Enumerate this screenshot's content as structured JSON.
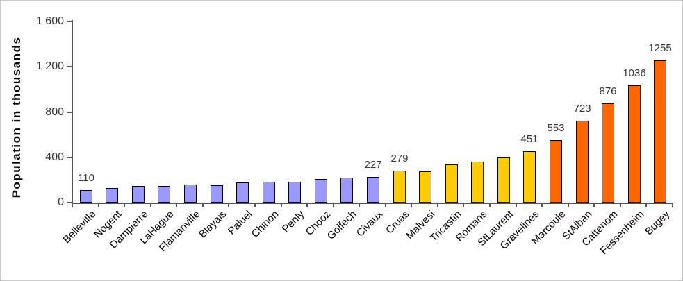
{
  "chart_data": {
    "type": "bar",
    "title": "",
    "ylabel": "Population in thousands",
    "xlabel": "",
    "ylim": [
      0,
      1600
    ],
    "grid": false,
    "legend": "none",
    "yticks": [
      {
        "value": 0,
        "label": "0"
      },
      {
        "value": 400,
        "label": "400"
      },
      {
        "value": 800,
        "label": "800"
      },
      {
        "value": 1200,
        "label": "1 200"
      },
      {
        "value": 1600,
        "label": "1 600"
      }
    ],
    "categories": [
      "Belleville",
      "Nogent",
      "Dampierre",
      "LaHague",
      "Flamanville",
      "Blayais",
      "Paluel",
      "Chinon",
      "Penly",
      "Chooz",
      "Golfech",
      "Civaux",
      "Cruas",
      "Malvesi",
      "Tricastin",
      "Romans",
      "StLaurent",
      "Gravelines",
      "Marcoule",
      "StAlban",
      "Cattenom",
      "Fessenheim",
      "Bugey"
    ],
    "bars": [
      {
        "category": "Belleville",
        "value": 110,
        "data_label": "110",
        "color": "#9999FF"
      },
      {
        "category": "Nogent",
        "value": 130,
        "data_label": "",
        "color": "#9999FF"
      },
      {
        "category": "Dampierre",
        "value": 150,
        "data_label": "",
        "color": "#9999FF"
      },
      {
        "category": "LaHague",
        "value": 150,
        "data_label": "",
        "color": "#9999FF"
      },
      {
        "category": "Flamanville",
        "value": 160,
        "data_label": "",
        "color": "#9999FF"
      },
      {
        "category": "Blayais",
        "value": 155,
        "data_label": "",
        "color": "#9999FF"
      },
      {
        "category": "Paluel",
        "value": 180,
        "data_label": "",
        "color": "#9999FF"
      },
      {
        "category": "Chinon",
        "value": 185,
        "data_label": "",
        "color": "#9999FF"
      },
      {
        "category": "Penly",
        "value": 185,
        "data_label": "",
        "color": "#9999FF"
      },
      {
        "category": "Chooz",
        "value": 210,
        "data_label": "",
        "color": "#9999FF"
      },
      {
        "category": "Golfech",
        "value": 220,
        "data_label": "",
        "color": "#9999FF"
      },
      {
        "category": "Civaux",
        "value": 227,
        "data_label": "227",
        "color": "#9999FF"
      },
      {
        "category": "Cruas",
        "value": 279,
        "data_label": "279",
        "color": "#FFCC00"
      },
      {
        "category": "Malvesi",
        "value": 275,
        "data_label": "",
        "color": "#FFCC00"
      },
      {
        "category": "Tricastin",
        "value": 340,
        "data_label": "",
        "color": "#FFCC00"
      },
      {
        "category": "Romans",
        "value": 360,
        "data_label": "",
        "color": "#FFCC00"
      },
      {
        "category": "StLaurent",
        "value": 400,
        "data_label": "",
        "color": "#FFCC00"
      },
      {
        "category": "Gravelines",
        "value": 451,
        "data_label": "451",
        "color": "#FFCC00"
      },
      {
        "category": "Marcoule",
        "value": 553,
        "data_label": "553",
        "color": "#FF6600"
      },
      {
        "category": "StAlban",
        "value": 723,
        "data_label": "723",
        "color": "#FF6600"
      },
      {
        "category": "Cattenom",
        "value": 876,
        "data_label": "876",
        "color": "#FF6600"
      },
      {
        "category": "Fessenheim",
        "value": 1036,
        "data_label": "1036",
        "color": "#FF6600"
      },
      {
        "category": "Bugey",
        "value": 1255,
        "data_label": "1255",
        "color": "#FF6600"
      }
    ],
    "color_groups": {
      "low_population": "#9999FF",
      "mid_population": "#FFCC00",
      "high_population": "#FF6600"
    }
  },
  "colors": {
    "axis": "#555555",
    "bar_border": "#000000",
    "value_label_text": "#333333",
    "tick_label_text": "#333333",
    "category_label_text": "#000000",
    "background": "#FFFFFF"
  }
}
